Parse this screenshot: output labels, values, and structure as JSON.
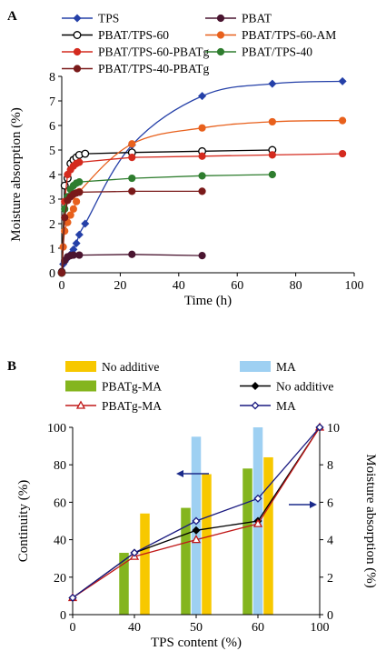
{
  "figure": {
    "panel_labels": [
      "A",
      "B"
    ]
  },
  "chart_data": [
    {
      "panel": "A",
      "type": "line",
      "xlabel": "Time (h)",
      "ylabel": "Moisture absorption (%)",
      "xlim": [
        0,
        100
      ],
      "ylim": [
        0,
        8
      ],
      "xticks": [
        0,
        20,
        40,
        60,
        80,
        100
      ],
      "yticks": [
        0,
        1,
        2,
        3,
        4,
        5,
        6,
        7,
        8
      ],
      "grid": false,
      "legend_position": "top",
      "legend_columns": 2,
      "series": [
        {
          "name": "TPS",
          "color": "#2540a8",
          "marker": "diamond-filled",
          "smooth": true,
          "points": [
            [
              0,
              0
            ],
            [
              0.5,
              0.35
            ],
            [
              1,
              0.45
            ],
            [
              2,
              0.6
            ],
            [
              3,
              0.75
            ],
            [
              4,
              0.95
            ],
            [
              5,
              1.2
            ],
            [
              6,
              1.55
            ],
            [
              8,
              2.0
            ],
            [
              24,
              5.2
            ],
            [
              48,
              7.2
            ],
            [
              72,
              7.7
            ],
            [
              96,
              7.8
            ]
          ]
        },
        {
          "name": "PBAT",
          "color": "#4a1530",
          "marker": "circle-filled",
          "smooth": false,
          "points": [
            [
              0,
              0.05
            ],
            [
              1,
              0.5
            ],
            [
              2,
              0.65
            ],
            [
              3,
              0.7
            ],
            [
              4,
              0.72
            ],
            [
              6,
              0.72
            ],
            [
              24,
              0.75
            ],
            [
              48,
              0.7
            ]
          ]
        },
        {
          "name": "PBAT/TPS-60",
          "color": "#000000",
          "marker": "circle-open",
          "smooth": false,
          "points": [
            [
              0,
              0
            ],
            [
              1,
              3.55
            ],
            [
              2,
              3.85
            ],
            [
              3,
              4.45
            ],
            [
              4,
              4.6
            ],
            [
              5,
              4.7
            ],
            [
              6,
              4.8
            ],
            [
              8,
              4.85
            ],
            [
              24,
              4.9
            ],
            [
              48,
              4.95
            ],
            [
              72,
              5.0
            ]
          ]
        },
        {
          "name": "PBAT/TPS-60-AM",
          "color": "#e8601c",
          "marker": "circle-filled",
          "smooth": true,
          "points": [
            [
              0,
              0
            ],
            [
              0.5,
              1.05
            ],
            [
              1,
              1.7
            ],
            [
              2,
              2.05
            ],
            [
              3,
              2.35
            ],
            [
              4,
              2.6
            ],
            [
              5,
              2.9
            ],
            [
              6,
              3.3
            ],
            [
              24,
              5.25
            ],
            [
              48,
              5.9
            ],
            [
              72,
              6.15
            ],
            [
              96,
              6.2
            ]
          ]
        },
        {
          "name": "PBAT/TPS-60-PBATg",
          "color": "#d42a1e",
          "marker": "circle-filled",
          "smooth": false,
          "points": [
            [
              0,
              0
            ],
            [
              1,
              2.9
            ],
            [
              2,
              4.0
            ],
            [
              3,
              4.2
            ],
            [
              4,
              4.35
            ],
            [
              5,
              4.45
            ],
            [
              6,
              4.5
            ],
            [
              24,
              4.7
            ],
            [
              48,
              4.75
            ],
            [
              72,
              4.8
            ],
            [
              96,
              4.85
            ]
          ]
        },
        {
          "name": "PBAT/TPS-40",
          "color": "#2e7d2e",
          "marker": "circle-filled",
          "smooth": false,
          "points": [
            [
              0,
              0
            ],
            [
              1,
              2.6
            ],
            [
              2,
              3.1
            ],
            [
              3,
              3.4
            ],
            [
              4,
              3.55
            ],
            [
              5,
              3.65
            ],
            [
              6,
              3.7
            ],
            [
              24,
              3.85
            ],
            [
              48,
              3.95
            ],
            [
              72,
              4.0
            ]
          ]
        },
        {
          "name": "PBAT/TPS-40-PBATg",
          "color": "#7a1a1a",
          "marker": "circle-filled",
          "smooth": false,
          "points": [
            [
              0,
              0
            ],
            [
              1,
              2.25
            ],
            [
              2,
              2.95
            ],
            [
              3,
              3.1
            ],
            [
              4,
              3.2
            ],
            [
              5,
              3.25
            ],
            [
              6,
              3.28
            ],
            [
              24,
              3.32
            ],
            [
              48,
              3.32
            ]
          ]
        }
      ]
    },
    {
      "panel": "B",
      "type": "bar+line",
      "xlabel": "TPS content (%)",
      "ylabel": "Continuity (%)",
      "y2label": "Moisture absorption (%)",
      "categories": [
        "0",
        "40",
        "50",
        "60",
        "100"
      ],
      "ylim": [
        0,
        100
      ],
      "yticks": [
        0,
        20,
        40,
        60,
        80,
        100
      ],
      "y2lim": [
        0,
        10
      ],
      "y2ticks": [
        0,
        2,
        4,
        6,
        8,
        10
      ],
      "grid": false,
      "legend_position": "top",
      "legend_columns": 2,
      "bar_series": [
        {
          "name": "PBATg-MA",
          "color": "#84b51e",
          "values": [
            null,
            33,
            57,
            78,
            null
          ]
        },
        {
          "name": "MA",
          "color": "#9ed0f2",
          "values": [
            null,
            null,
            95,
            100,
            null
          ]
        },
        {
          "name": "No additive",
          "color": "#f7c800",
          "values": [
            null,
            54,
            75,
            84,
            null
          ]
        }
      ],
      "line_series": [
        {
          "name": "No additive",
          "color": "#000000",
          "marker": "diamond-filled",
          "values": [
            0.9,
            3.3,
            4.5,
            5.0,
            10.0
          ]
        },
        {
          "name": "PBATg-MA",
          "color": "#c01818",
          "marker": "triangle-open",
          "values": [
            0.9,
            3.1,
            4.0,
            4.85,
            10.0
          ]
        },
        {
          "name": "MA",
          "color": "#1a1a80",
          "marker": "diamond-open",
          "values": [
            0.9,
            3.3,
            5.0,
            6.2,
            10.0
          ]
        }
      ],
      "legend_order": [
        {
          "kind": "bar",
          "series": 2
        },
        {
          "kind": "bar",
          "series": 1
        },
        {
          "kind": "bar",
          "series": 0
        },
        {
          "kind": "line",
          "series": 0
        },
        {
          "kind": "line",
          "series": 1
        },
        {
          "kind": "line",
          "series": 2
        }
      ],
      "annotations": [
        {
          "type": "arrow",
          "direction": "left",
          "axis": "left"
        },
        {
          "type": "arrow",
          "direction": "right",
          "axis": "right"
        }
      ]
    }
  ]
}
